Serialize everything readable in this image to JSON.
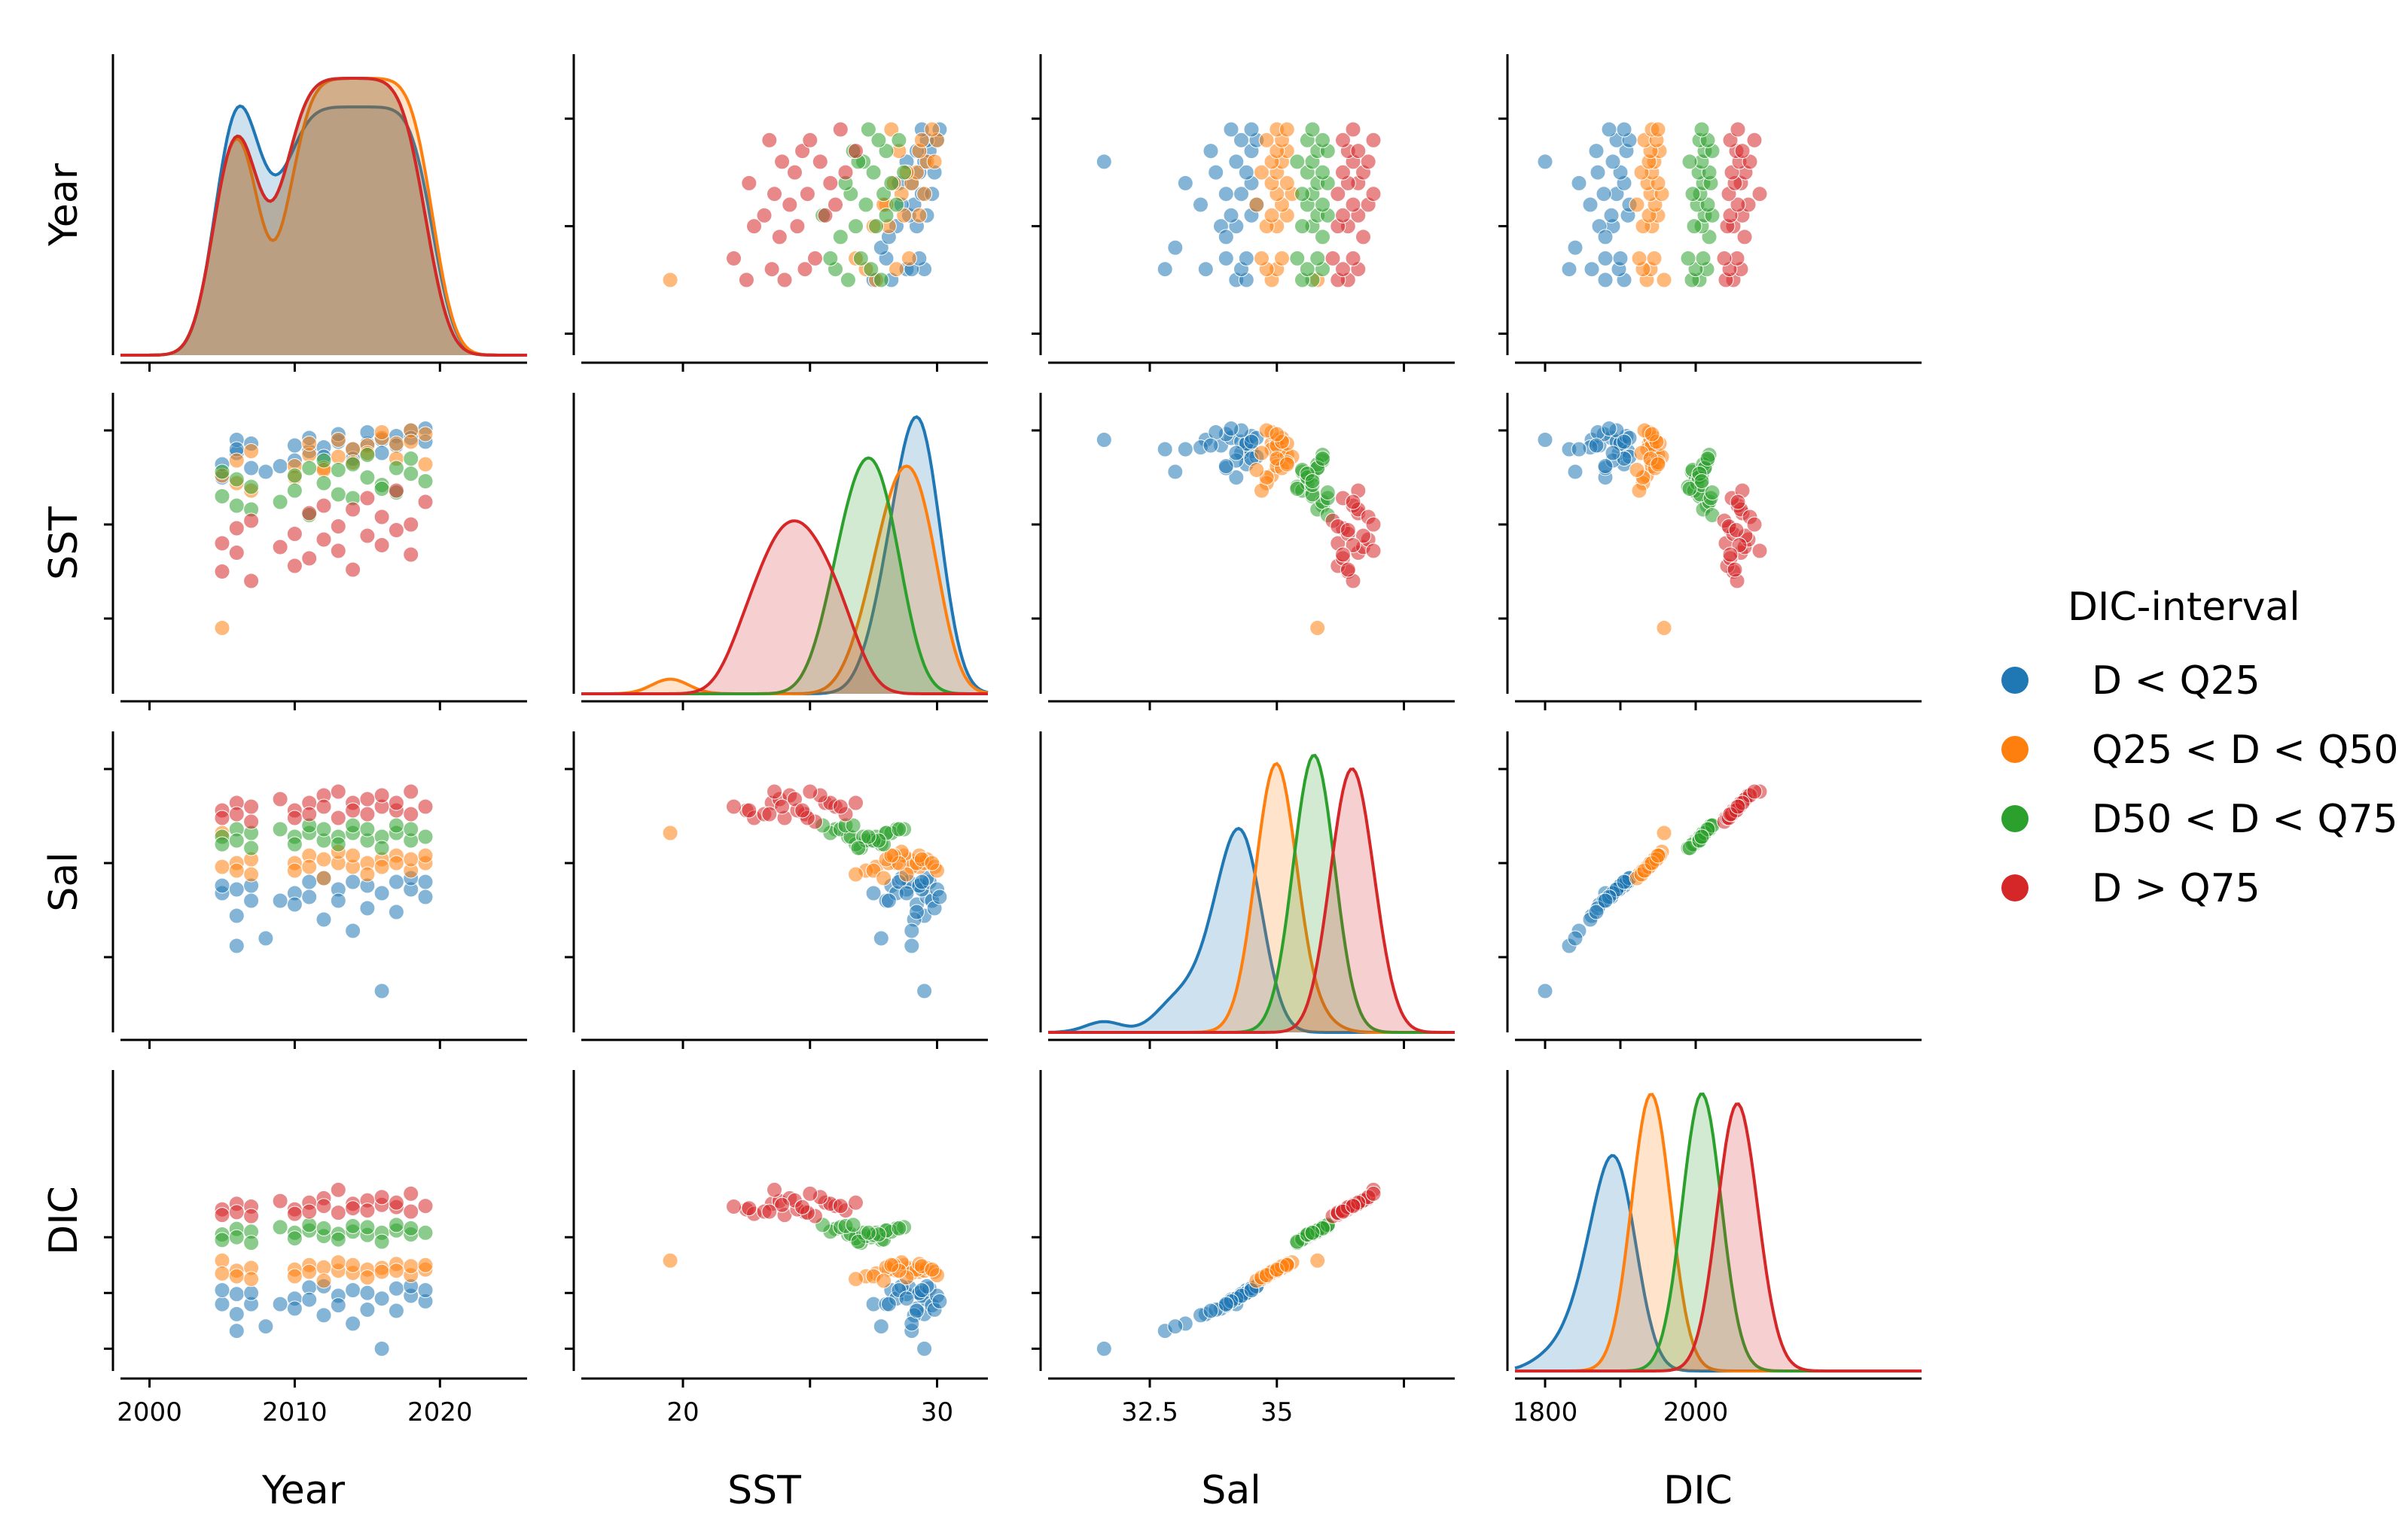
{
  "chart_data": {
    "type": "scatter",
    "subtype": "pairplot",
    "variables": [
      "Year",
      "SST",
      "Sal",
      "DIC"
    ],
    "diagonal": "kde",
    "axes": {
      "Year": {
        "range": [
          1998,
          2026
        ],
        "ticks": [
          2000,
          2010,
          2020
        ],
        "tick_labels": [
          "2000",
          "2010",
          "2020"
        ]
      },
      "SST": {
        "range": [
          16,
          32
        ],
        "ticks": [
          20,
          25,
          30
        ],
        "tick_labels": [
          "20",
          "",
          "30"
        ]
      },
      "Sal": {
        "range": [
          30.5,
          38.5
        ],
        "ticks": [
          32.5,
          35,
          37.5
        ],
        "tick_labels": [
          "32.5",
          "35",
          ""
        ]
      },
      "DIC": {
        "range": [
          1760,
          2300
        ],
        "ticks": [
          1800,
          1900,
          2000
        ],
        "tick_labels": [
          "1800",
          "",
          "2000"
        ]
      }
    },
    "legend": {
      "title": "DIC-interval",
      "placement": "right",
      "entries": [
        "D < Q25",
        "Q25 < D < Q50",
        "D50 < D < Q75",
        "D > Q75"
      ]
    },
    "series": [
      {
        "name": "D < Q25",
        "color": "#1f77b4",
        "points": [
          [
            2005,
            27.5,
            34.2,
            1880
          ],
          [
            2005,
            28.2,
            34.4,
            1905
          ],
          [
            2006,
            28.8,
            34.3,
            1898
          ],
          [
            2006,
            29.5,
            33.6,
            1862
          ],
          [
            2006,
            29.0,
            32.8,
            1832
          ],
          [
            2007,
            28.0,
            34.0,
            1880
          ],
          [
            2007,
            29.3,
            34.4,
            1900
          ],
          [
            2010,
            28.4,
            34.2,
            1890
          ],
          [
            2010,
            29.2,
            33.9,
            1872
          ],
          [
            2011,
            28.9,
            34.5,
            1910
          ],
          [
            2011,
            29.6,
            34.1,
            1888
          ],
          [
            2012,
            29.1,
            33.5,
            1860
          ],
          [
            2012,
            28.6,
            34.6,
            1912
          ],
          [
            2013,
            29.4,
            34.3,
            1895
          ],
          [
            2013,
            29.8,
            34.0,
            1878
          ],
          [
            2014,
            29.0,
            33.2,
            1845
          ],
          [
            2014,
            28.5,
            34.5,
            1905
          ],
          [
            2015,
            29.3,
            34.4,
            1900
          ],
          [
            2015,
            29.9,
            33.8,
            1870
          ],
          [
            2016,
            29.5,
            31.6,
            1800
          ],
          [
            2016,
            28.8,
            34.2,
            1890
          ],
          [
            2017,
            29.7,
            34.5,
            1908
          ],
          [
            2017,
            29.2,
            33.7,
            1868
          ],
          [
            2018,
            30.0,
            34.3,
            1895
          ],
          [
            2018,
            29.6,
            34.6,
            1912
          ],
          [
            2019,
            30.1,
            34.1,
            1885
          ],
          [
            2019,
            29.4,
            34.5,
            1905
          ],
          [
            2008,
            27.8,
            33.0,
            1840
          ],
          [
            2009,
            28.1,
            34.0,
            1880
          ]
        ]
      },
      {
        "name": "Q25 < D < Q50",
        "color": "#ff7f0e",
        "points": [
          [
            2005,
            19.5,
            35.8,
            1958
          ],
          [
            2005,
            27.6,
            34.9,
            1935
          ],
          [
            2006,
            28.4,
            35.0,
            1940
          ],
          [
            2006,
            27.2,
            34.8,
            1930
          ],
          [
            2007,
            28.9,
            35.1,
            1945
          ],
          [
            2007,
            26.8,
            34.7,
            1925
          ],
          [
            2010,
            28.1,
            35.0,
            1942
          ],
          [
            2010,
            27.5,
            34.8,
            1930
          ],
          [
            2011,
            28.7,
            35.2,
            1950
          ],
          [
            2011,
            29.3,
            34.9,
            1938
          ],
          [
            2012,
            28.0,
            35.1,
            1946
          ],
          [
            2012,
            27.9,
            34.6,
            1922
          ],
          [
            2013,
            29.5,
            35.0,
            1940
          ],
          [
            2013,
            28.6,
            35.3,
            1955
          ],
          [
            2014,
            29.0,
            34.9,
            1936
          ],
          [
            2014,
            28.3,
            35.2,
            1950
          ],
          [
            2015,
            29.2,
            35.0,
            1942
          ],
          [
            2015,
            28.8,
            34.7,
            1928
          ],
          [
            2016,
            29.6,
            35.1,
            1945
          ],
          [
            2016,
            29.9,
            34.9,
            1938
          ],
          [
            2017,
            29.3,
            35.2,
            1952
          ],
          [
            2017,
            28.5,
            35.0,
            1940
          ],
          [
            2018,
            30.0,
            34.8,
            1932
          ],
          [
            2018,
            29.4,
            35.1,
            1948
          ],
          [
            2019,
            29.8,
            35.0,
            1942
          ],
          [
            2019,
            28.2,
            35.2,
            1950
          ]
        ]
      },
      {
        "name": "D50 < D < Q75",
        "color": "#2ca02c",
        "points": [
          [
            2005,
            26.5,
            35.7,
            2005
          ],
          [
            2005,
            27.8,
            35.5,
            1995
          ],
          [
            2006,
            26.0,
            35.9,
            2015
          ],
          [
            2006,
            27.4,
            35.6,
            2000
          ],
          [
            2007,
            25.8,
            35.8,
            2010
          ],
          [
            2007,
            27.0,
            35.4,
            1990
          ],
          [
            2009,
            26.2,
            35.9,
            2018
          ],
          [
            2010,
            27.6,
            35.7,
            2008
          ],
          [
            2010,
            26.8,
            35.5,
            1998
          ],
          [
            2011,
            28.0,
            35.8,
            2012
          ],
          [
            2011,
            25.5,
            36.0,
            2022
          ],
          [
            2012,
            27.2,
            35.6,
            2002
          ],
          [
            2012,
            28.4,
            35.9,
            2016
          ],
          [
            2013,
            26.6,
            35.7,
            2006
          ],
          [
            2013,
            27.9,
            35.5,
            1996
          ],
          [
            2014,
            28.2,
            35.8,
            2010
          ],
          [
            2014,
            26.4,
            36.0,
            2020
          ],
          [
            2015,
            27.5,
            35.6,
            2004
          ],
          [
            2015,
            28.7,
            35.9,
            2018
          ],
          [
            2016,
            27.1,
            35.7,
            2008
          ],
          [
            2016,
            26.9,
            35.4,
            1992
          ],
          [
            2017,
            28.0,
            35.8,
            2012
          ],
          [
            2017,
            26.7,
            36.0,
            2022
          ],
          [
            2018,
            27.7,
            35.6,
            2005
          ],
          [
            2018,
            28.5,
            35.9,
            2016
          ],
          [
            2019,
            27.3,
            35.7,
            2008
          ]
        ]
      },
      {
        "name": "D > Q75",
        "color": "#d62728",
        "points": [
          [
            2005,
            22.5,
            36.4,
            2050
          ],
          [
            2005,
            24.0,
            36.2,
            2040
          ],
          [
            2006,
            23.5,
            36.6,
            2060
          ],
          [
            2006,
            24.8,
            36.3,
            2045
          ],
          [
            2007,
            22.0,
            36.5,
            2055
          ],
          [
            2007,
            25.2,
            36.1,
            2038
          ],
          [
            2009,
            23.8,
            36.7,
            2065
          ],
          [
            2010,
            24.5,
            36.4,
            2050
          ],
          [
            2010,
            22.8,
            36.2,
            2042
          ],
          [
            2011,
            25.6,
            36.6,
            2062
          ],
          [
            2011,
            23.2,
            36.3,
            2046
          ],
          [
            2012,
            24.2,
            36.8,
            2070
          ],
          [
            2012,
            26.0,
            36.5,
            2056
          ],
          [
            2013,
            23.6,
            36.9,
            2085
          ],
          [
            2013,
            24.9,
            36.2,
            2044
          ],
          [
            2014,
            25.8,
            36.6,
            2060
          ],
          [
            2014,
            22.6,
            36.4,
            2052
          ],
          [
            2015,
            24.4,
            36.7,
            2066
          ],
          [
            2015,
            26.4,
            36.3,
            2048
          ],
          [
            2016,
            23.9,
            36.5,
            2058
          ],
          [
            2016,
            25.4,
            36.8,
            2072
          ],
          [
            2017,
            24.7,
            36.4,
            2054
          ],
          [
            2017,
            26.8,
            36.6,
            2062
          ],
          [
            2018,
            25.0,
            36.9,
            2078
          ],
          [
            2018,
            23.4,
            36.3,
            2046
          ],
          [
            2019,
            26.2,
            36.5,
            2056
          ]
        ]
      }
    ]
  }
}
